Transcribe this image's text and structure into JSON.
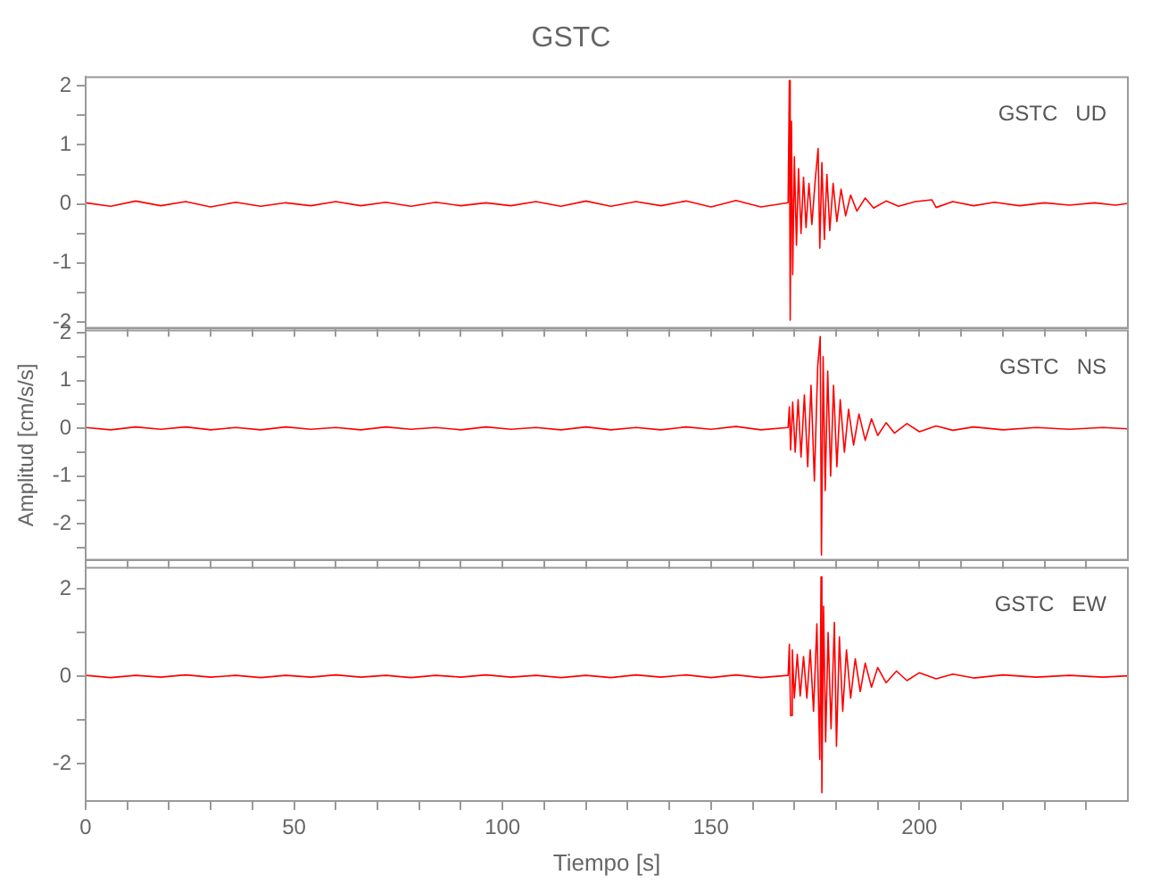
{
  "chart_data": [
    {
      "type": "line",
      "title": "GSTC",
      "annotations": [
        "GSTC   UD"
      ],
      "marker": "none",
      "tick_labels": "y",
      "xlim": [
        0,
        250
      ],
      "xticks": [
        {
          "value": 0,
          "label": null
        },
        {
          "value": 10,
          "label": null
        },
        {
          "value": 20,
          "label": null
        },
        {
          "value": 30,
          "label": null
        },
        {
          "value": 40,
          "label": null
        },
        {
          "value": 50,
          "label": null
        },
        {
          "value": 60,
          "label": null
        },
        {
          "value": 70,
          "label": null
        },
        {
          "value": 80,
          "label": null
        },
        {
          "value": 90,
          "label": null
        },
        {
          "value": 100,
          "label": null
        },
        {
          "value": 110,
          "label": null
        },
        {
          "value": 120,
          "label": null
        },
        {
          "value": 130,
          "label": null
        },
        {
          "value": 140,
          "label": null
        },
        {
          "value": 150,
          "label": null
        },
        {
          "value": 160,
          "label": null
        },
        {
          "value": 170,
          "label": null
        },
        {
          "value": 180,
          "label": null
        },
        {
          "value": 190,
          "label": null
        },
        {
          "value": 200,
          "label": null
        },
        {
          "value": 210,
          "label": null
        },
        {
          "value": 220,
          "label": null
        },
        {
          "value": 230,
          "label": null
        },
        {
          "value": 240,
          "label": null
        }
      ],
      "ylim": [
        -2.1,
        2.15
      ],
      "yticks": [
        -2,
        {
          "value": -1.5,
          "label": null
        },
        -1,
        {
          "value": -0.5,
          "label": null
        },
        0,
        {
          "value": 0.5,
          "label": null
        },
        1,
        {
          "value": 1.5,
          "label": null
        },
        2
      ],
      "series": [
        {
          "color": "#ff0000",
          "x": [
            0,
            6,
            12,
            18,
            24,
            30,
            36,
            42,
            48,
            54,
            60,
            66,
            72,
            78,
            84,
            90,
            96,
            102,
            108,
            114,
            120,
            126,
            132,
            138,
            144,
            150,
            156,
            162,
            168.5,
            168.8,
            169,
            169.3,
            169.6,
            170,
            170.5,
            171,
            171.6,
            172.2,
            172.8,
            173.5,
            174.2,
            175,
            175.7,
            176.1,
            176.6,
            177.2,
            177.8,
            178.5,
            179.3,
            180.2,
            181.2,
            182.3,
            183.5,
            185,
            187,
            189,
            192,
            195,
            199,
            203,
            204,
            208,
            213,
            218,
            224,
            230,
            236,
            242,
            247,
            250
          ],
          "values": [
            0.02,
            -0.04,
            0.05,
            -0.03,
            0.04,
            -0.05,
            0.03,
            -0.04,
            0.02,
            -0.03,
            0.04,
            -0.03,
            0.03,
            -0.04,
            0.03,
            -0.03,
            0.02,
            -0.03,
            0.04,
            -0.04,
            0.05,
            -0.04,
            0.04,
            -0.03,
            0.05,
            -0.05,
            0.06,
            -0.05,
            0.02,
            2.09,
            -1.97,
            1.4,
            -1.2,
            0.8,
            -0.7,
            0.6,
            -0.5,
            0.45,
            -0.4,
            0.35,
            -0.35,
            0.4,
            0.94,
            -0.75,
            0.7,
            -0.6,
            0.5,
            -0.45,
            0.35,
            -0.3,
            0.25,
            -0.2,
            0.15,
            -0.12,
            0.1,
            -0.07,
            0.05,
            -0.04,
            0.04,
            0.07,
            -0.06,
            0.04,
            -0.03,
            0.03,
            -0.03,
            0.02,
            -0.02,
            0.02,
            -0.02,
            0.01
          ]
        }
      ]
    },
    {
      "type": "line",
      "ylabel": "Amplitud [cm/s/s]",
      "annotations": [
        "GSTC   NS"
      ],
      "marker": "none",
      "tick_labels": "y",
      "xlim": [
        0,
        250
      ],
      "xticks": [
        {
          "value": 0,
          "label": null
        },
        {
          "value": 10,
          "label": null
        },
        {
          "value": 20,
          "label": null
        },
        {
          "value": 30,
          "label": null
        },
        {
          "value": 40,
          "label": null
        },
        {
          "value": 50,
          "label": null
        },
        {
          "value": 60,
          "label": null
        },
        {
          "value": 70,
          "label": null
        },
        {
          "value": 80,
          "label": null
        },
        {
          "value": 90,
          "label": null
        },
        {
          "value": 100,
          "label": null
        },
        {
          "value": 110,
          "label": null
        },
        {
          "value": 120,
          "label": null
        },
        {
          "value": 130,
          "label": null
        },
        {
          "value": 140,
          "label": null
        },
        {
          "value": 150,
          "label": null
        },
        {
          "value": 160,
          "label": null
        },
        {
          "value": 170,
          "label": null
        },
        {
          "value": 180,
          "label": null
        },
        {
          "value": 190,
          "label": null
        },
        {
          "value": 200,
          "label": null
        },
        {
          "value": 210,
          "label": null
        },
        {
          "value": 220,
          "label": null
        },
        {
          "value": 230,
          "label": null
        },
        {
          "value": 240,
          "label": null
        }
      ],
      "ylim": [
        -2.75,
        2.05
      ],
      "yticks": [
        {
          "value": -2.5,
          "label": null
        },
        -2,
        {
          "value": -1.5,
          "label": null
        },
        -1,
        {
          "value": -0.5,
          "label": null
        },
        0,
        {
          "value": 0.5,
          "label": null
        },
        1,
        {
          "value": 1.5,
          "label": null
        },
        2
      ],
      "series": [
        {
          "color": "#ff0000",
          "x": [
            0,
            6,
            12,
            18,
            24,
            30,
            36,
            42,
            48,
            54,
            60,
            66,
            72,
            78,
            84,
            90,
            96,
            102,
            108,
            114,
            120,
            126,
            132,
            138,
            144,
            150,
            156,
            162,
            168.5,
            168.8,
            169.1,
            169.6,
            170.2,
            170.9,
            171.6,
            172.4,
            173.2,
            174,
            174.8,
            175.6,
            176.2,
            176.5,
            176.9,
            177.4,
            178,
            178.7,
            179.4,
            180.2,
            181,
            182,
            183,
            184.2,
            185.5,
            187,
            188.5,
            190,
            192,
            194,
            197,
            200,
            204,
            208,
            213,
            220,
            228,
            236,
            244,
            250
          ],
          "values": [
            0.02,
            -0.03,
            0.03,
            -0.02,
            0.03,
            -0.03,
            0.02,
            -0.03,
            0.03,
            -0.02,
            0.02,
            -0.03,
            0.03,
            -0.02,
            0.02,
            -0.03,
            0.03,
            -0.02,
            0.02,
            -0.03,
            0.03,
            -0.03,
            0.02,
            -0.03,
            0.03,
            -0.02,
            0.04,
            -0.03,
            0.02,
            0.45,
            -0.45,
            0.55,
            -0.5,
            0.6,
            -0.6,
            0.7,
            -0.8,
            0.9,
            -1.1,
            1.3,
            1.92,
            -2.65,
            1.5,
            -1.3,
            1.2,
            -1,
            0.9,
            -0.8,
            0.6,
            -0.5,
            0.4,
            -0.35,
            0.3,
            -0.25,
            0.2,
            -0.15,
            0.12,
            -0.1,
            0.1,
            -0.07,
            0.05,
            -0.04,
            0.03,
            -0.03,
            0.02,
            -0.02,
            0.02,
            -0.01
          ]
        }
      ]
    },
    {
      "type": "line",
      "xlabel": "Tiempo [s]",
      "annotations": [
        "GSTC   EW"
      ],
      "marker": "none",
      "xlim": [
        0,
        250
      ],
      "xticks": [
        0,
        {
          "value": 10,
          "label": null
        },
        {
          "value": 20,
          "label": null
        },
        {
          "value": 30,
          "label": null
        },
        {
          "value": 40,
          "label": null
        },
        50,
        {
          "value": 60,
          "label": null
        },
        {
          "value": 70,
          "label": null
        },
        {
          "value": 80,
          "label": null
        },
        {
          "value": 90,
          "label": null
        },
        100,
        {
          "value": 110,
          "label": null
        },
        {
          "value": 120,
          "label": null
        },
        {
          "value": 130,
          "label": null
        },
        {
          "value": 140,
          "label": null
        },
        150,
        {
          "value": 160,
          "label": null
        },
        {
          "value": 170,
          "label": null
        },
        {
          "value": 180,
          "label": null
        },
        {
          "value": 190,
          "label": null
        },
        200,
        {
          "value": 210,
          "label": null
        },
        {
          "value": 220,
          "label": null
        },
        {
          "value": 230,
          "label": null
        },
        {
          "value": 240,
          "label": null
        }
      ],
      "ylim": [
        -2.85,
        2.48
      ],
      "yticks": [
        -2,
        {
          "value": -1,
          "label": null
        },
        0,
        {
          "value": 1,
          "label": null
        },
        2
      ],
      "series": [
        {
          "color": "#ff0000",
          "x": [
            0,
            6,
            12,
            18,
            24,
            30,
            36,
            42,
            48,
            54,
            60,
            66,
            72,
            78,
            84,
            90,
            96,
            102,
            108,
            114,
            120,
            126,
            132,
            138,
            144,
            150,
            156,
            162,
            168.5,
            168.8,
            169.1,
            169.5,
            170,
            170.7,
            171.4,
            172.2,
            173,
            173.8,
            174.6,
            175.4,
            176.1,
            176.4,
            176.6,
            177,
            177.5,
            178.1,
            178.8,
            179.6,
            180.1,
            180.8,
            181.6,
            182.5,
            183.5,
            184.6,
            185.8,
            187,
            188.5,
            190,
            192,
            194.5,
            197,
            200,
            204,
            208,
            213,
            220,
            228,
            236,
            244,
            250
          ],
          "values": [
            0.02,
            -0.03,
            0.02,
            -0.02,
            0.03,
            -0.02,
            0.02,
            -0.03,
            0.02,
            -0.02,
            0.03,
            -0.02,
            0.02,
            -0.03,
            0.02,
            -0.02,
            0.03,
            -0.02,
            0.02,
            -0.03,
            0.02,
            -0.03,
            0.03,
            -0.02,
            0.03,
            -0.03,
            0.03,
            -0.03,
            0.02,
            0.73,
            -0.9,
            0.6,
            -0.5,
            0.5,
            -0.45,
            0.45,
            -0.5,
            0.6,
            -0.8,
            1.2,
            -1.9,
            2.27,
            -2.66,
            1.6,
            -1.5,
            1,
            -1.2,
            1.23,
            -1.6,
            0.9,
            -0.8,
            0.6,
            -0.5,
            0.4,
            -0.35,
            0.3,
            -0.25,
            0.2,
            -0.15,
            0.12,
            -0.1,
            0.08,
            -0.06,
            0.05,
            -0.04,
            0.03,
            -0.02,
            0.02,
            -0.02,
            0.01
          ]
        }
      ]
    }
  ]
}
